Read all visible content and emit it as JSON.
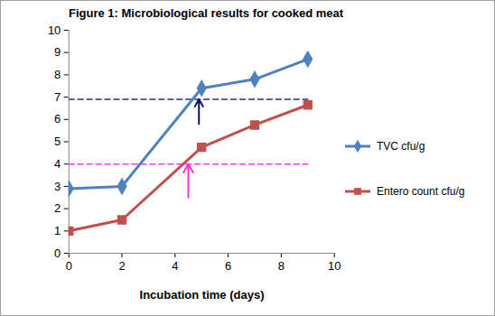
{
  "chart_data": {
    "type": "line",
    "title": "Figure 1: Microbiological results for cooked meat",
    "x_label": "Incubation time (days)",
    "x": [
      0,
      2,
      5,
      7,
      9
    ],
    "series": [
      {
        "name": "TVC cfu/g",
        "color": "#4f81bd",
        "marker": "diamond",
        "values": [
          2.9,
          3.0,
          7.4,
          7.8,
          8.7
        ]
      },
      {
        "name": "Entero count cfu/g",
        "color": "#c0504d",
        "marker": "square",
        "values": [
          1.0,
          1.5,
          4.75,
          5.75,
          6.65
        ]
      }
    ],
    "xlim": [
      0,
      10
    ],
    "xticks": [
      0,
      2,
      4,
      6,
      8,
      10
    ],
    "ylim": [
      0,
      10
    ],
    "yticks": [
      0,
      1,
      2,
      3,
      4,
      5,
      6,
      7,
      8,
      9,
      10
    ],
    "grid": false,
    "legend": "right",
    "reference_lines": [
      {
        "y": 6.9,
        "x": [
          0,
          9
        ],
        "color": "#2b2b8f",
        "line_style": "dashed"
      },
      {
        "y": 4.0,
        "x": [
          0,
          9
        ],
        "color": "#ff33ff",
        "line_style": "dashed"
      }
    ],
    "arrows": [
      {
        "x": 4.9,
        "y": [
          5.8,
          6.9
        ],
        "color": "#0d0d70"
      },
      {
        "x": 4.5,
        "y": [
          2.5,
          4.0
        ],
        "color": "#ff33cc"
      }
    ]
  }
}
